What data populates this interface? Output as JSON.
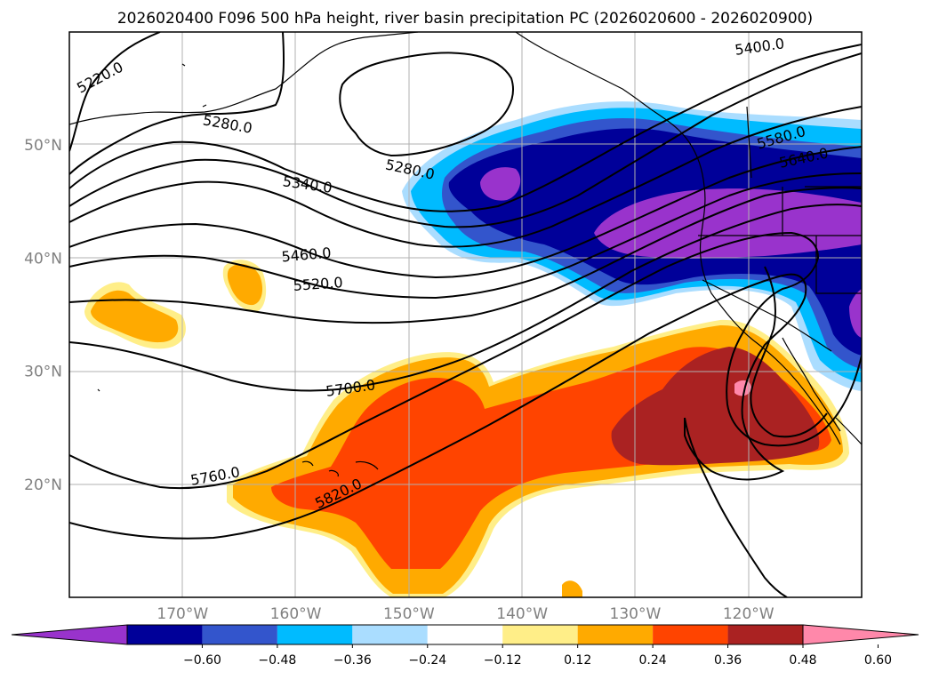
{
  "title": "2026020400 F096 500 hPa height, river basin precipitation PC (2026020600 - 2026020900)",
  "map": {
    "lon_range": [
      -180,
      -110
    ],
    "lat_range": [
      10,
      60
    ],
    "lat_ticks": [
      {
        "lat": 50,
        "label": "50°N"
      },
      {
        "lat": 40,
        "label": "40°N"
      },
      {
        "lat": 30,
        "label": "30°N"
      },
      {
        "lat": 20,
        "label": "20°N"
      }
    ],
    "lon_ticks": [
      {
        "lon": -170,
        "label": "170°W"
      },
      {
        "lon": -160,
        "label": "160°W"
      },
      {
        "lon": -150,
        "label": "150°W"
      },
      {
        "lon": -140,
        "label": "140°W"
      },
      {
        "lon": -130,
        "label": "130°W"
      },
      {
        "lon": -120,
        "label": "120°W"
      }
    ],
    "gridlines": true,
    "contour_labels": [
      "5220.0",
      "5280.0",
      "5280.0",
      "5340.0",
      "5400.0",
      "5460.0",
      "5520.0",
      "5580.0",
      "5640.0",
      "5700.0",
      "5760.0",
      "5820.0"
    ]
  },
  "colorbar": {
    "tick_labels": [
      "−0.60",
      "−0.48",
      "−0.36",
      "−0.24",
      "−0.12",
      "0.12",
      "0.24",
      "0.36",
      "0.48",
      "0.60"
    ],
    "colors": [
      "#9933cc",
      "#000099",
      "#3355cc",
      "#00bbff",
      "#aaddff",
      "#ffffff",
      "#ffee88",
      "#ffaa00",
      "#ff4400",
      "#aa2222",
      "#ff88aa"
    ],
    "extend": "both"
  }
}
